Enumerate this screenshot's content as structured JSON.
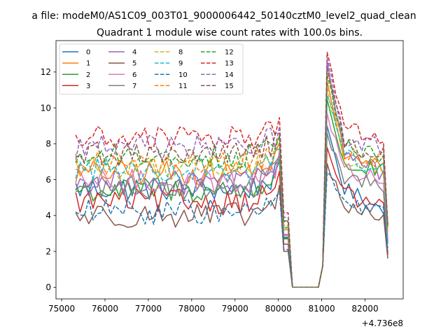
{
  "chart_data": {
    "type": "line",
    "suptitle": "a file: modeM0/AS1C09_003T01_9000006442_50140cztM0_level2_quad_clean",
    "title": "Quadrant 1 module wise count rates with 100.0s bins.",
    "xlabel": "",
    "ylabel": "",
    "x_offset_label": "+4.736e8",
    "xlim": [
      74870,
      82880
    ],
    "ylim": [
      -0.65,
      13.75
    ],
    "x_ticks": [
      75000,
      76000,
      77000,
      78000,
      79000,
      80000,
      81000,
      82000
    ],
    "x_tick_labels": [
      "75000",
      "76000",
      "77000",
      "78000",
      "79000",
      "80000",
      "81000",
      "82000"
    ],
    "y_ticks": [
      0,
      2,
      4,
      6,
      8,
      10,
      12
    ],
    "y_tick_labels": [
      "0",
      "2",
      "4",
      "6",
      "8",
      "10",
      "12"
    ],
    "grid": false,
    "legend_position": "top-left",
    "legend_columns": 4,
    "x_start": 75325,
    "x_step": 100,
    "x_count": 73,
    "gap": {
      "drop_start": 80125,
      "zero_start": 80325,
      "zero_end": 81025,
      "rise_end": 81125
    },
    "series": [
      {
        "name": "0",
        "color": "#1f77b4",
        "dash": "solid",
        "base": 5.5,
        "jump": 9.0,
        "decay": 5.4,
        "end": 4.2,
        "final": 1.9
      },
      {
        "name": "1",
        "color": "#ff7f0e",
        "dash": "solid",
        "base": 6.4,
        "jump": 11.5,
        "decay": 7.2,
        "end": 6.6,
        "final": 3.3
      },
      {
        "name": "2",
        "color": "#2ca02c",
        "dash": "solid",
        "base": 5.4,
        "jump": 10.5,
        "decay": 6.8,
        "end": 6.4,
        "final": 3.5
      },
      {
        "name": "3",
        "color": "#d62728",
        "dash": "solid",
        "base": 4.8,
        "jump": 7.8,
        "decay": 5.2,
        "end": 4.3,
        "final": 1.8
      },
      {
        "name": "4",
        "color": "#9467bd",
        "dash": "solid",
        "base": 5.8,
        "jump": 12.6,
        "decay": 7.5,
        "end": 6.2,
        "final": 2.6
      },
      {
        "name": "5",
        "color": "#8c564b",
        "dash": "solid",
        "base": 4.0,
        "jump": 6.9,
        "decay": 4.4,
        "end": 4.0,
        "final": 1.6
      },
      {
        "name": "6",
        "color": "#e377c2",
        "dash": "solid",
        "base": 5.9,
        "jump": 9.7,
        "decay": 6.5,
        "end": 5.9,
        "final": 2.5
      },
      {
        "name": "7",
        "color": "#7f7f7f",
        "dash": "solid",
        "base": 5.6,
        "jump": 8.6,
        "decay": 6.0,
        "end": 5.6,
        "final": 2.4
      },
      {
        "name": "8",
        "color": "#bcbd22",
        "dash": "dashed",
        "base": 6.7,
        "jump": 11.2,
        "decay": 7.0,
        "end": 6.7,
        "final": 3.3
      },
      {
        "name": "9",
        "color": "#17becf",
        "dash": "dashed",
        "base": 6.6,
        "jump": 10.7,
        "decay": 7.3,
        "end": 6.4,
        "final": 2.2
      },
      {
        "name": "10",
        "color": "#1f77b4",
        "dash": "dashed",
        "base": 4.2,
        "jump": 6.4,
        "decay": 4.6,
        "end": 4.2,
        "final": 2.0
      },
      {
        "name": "11",
        "color": "#ff7f0e",
        "dash": "dashed",
        "base": 6.9,
        "jump": 11.9,
        "decay": 7.4,
        "end": 7.1,
        "final": 3.0
      },
      {
        "name": "12",
        "color": "#2ca02c",
        "dash": "dashed",
        "base": 7.3,
        "jump": 11.8,
        "decay": 7.8,
        "end": 7.4,
        "final": 3.4
      },
      {
        "name": "13",
        "color": "#d62728",
        "dash": "dashed",
        "base": 8.3,
        "jump": 13.1,
        "decay": 8.8,
        "end": 8.3,
        "final": 3.5
      },
      {
        "name": "14",
        "color": "#9467bd",
        "dash": "dashed",
        "base": 7.8,
        "jump": 12.8,
        "decay": 8.2,
        "end": 7.8,
        "final": 3.5
      },
      {
        "name": "15",
        "color": "#8c564b",
        "dash": "dashed",
        "base": 7.4,
        "jump": 12.2,
        "decay": 7.9,
        "end": 7.3,
        "final": 3.4
      }
    ]
  }
}
